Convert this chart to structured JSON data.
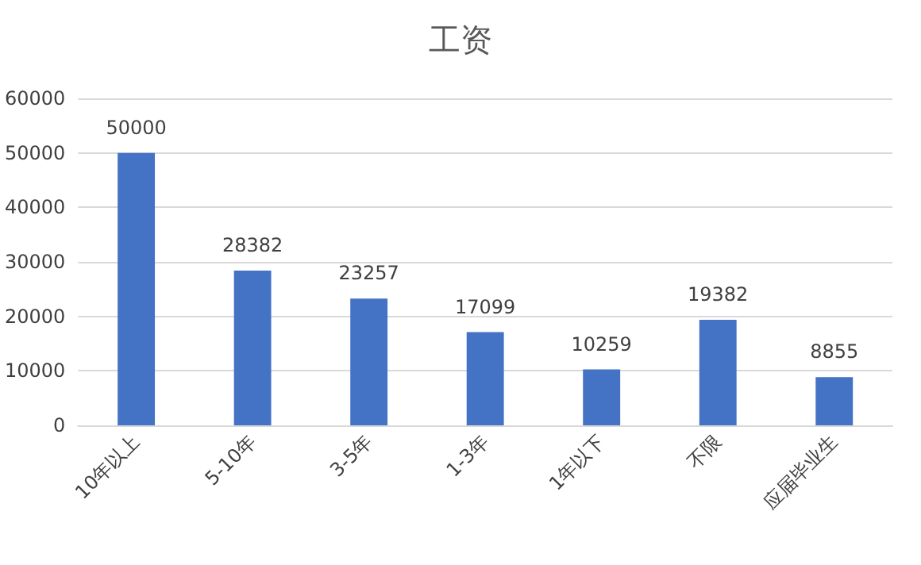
{
  "chart_data": {
    "type": "bar",
    "title": "工资",
    "categories": [
      "10年以上",
      "5-10年",
      "3-5年",
      "1-3年",
      "1年以下",
      "不限",
      "应届毕业生"
    ],
    "values": [
      50000,
      28382,
      23257,
      17099,
      10259,
      19382,
      8855
    ],
    "color": "#4472c4",
    "ylim": [
      0,
      60000
    ],
    "yticks": [
      0,
      10000,
      20000,
      30000,
      40000,
      50000,
      60000
    ],
    "grid": "y",
    "data_labels": true
  }
}
